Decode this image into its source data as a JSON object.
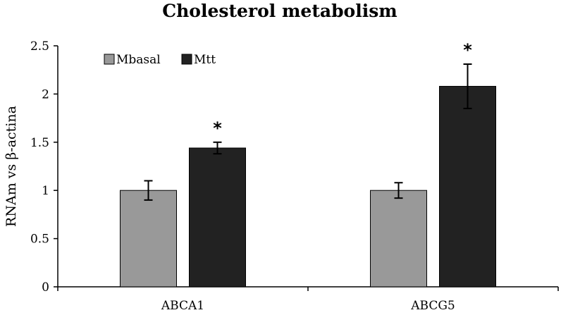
{
  "chart_data": {
    "type": "bar",
    "title": "Cholesterol metabolism",
    "xlabel": "",
    "ylabel": "RNAm vs β-actina",
    "ylim": [
      0,
      2.5
    ],
    "yticks": [
      "0",
      "0.5",
      "1",
      "1.5",
      "2",
      "2.5"
    ],
    "categories": [
      "ABCA1",
      "ABCG5"
    ],
    "series": [
      {
        "name": "Mbasal",
        "color": "#999999",
        "values": [
          1.0,
          1.0
        ],
        "errors": [
          0.1,
          0.08
        ]
      },
      {
        "name": "Mtt",
        "color": "#222222",
        "values": [
          1.44,
          2.08
        ],
        "errors": [
          0.06,
          0.23
        ]
      }
    ],
    "annotations": [
      {
        "category": "ABCA1",
        "series": "Mtt",
        "text": "*"
      },
      {
        "category": "ABCG5",
        "series": "Mtt",
        "text": "*"
      }
    ],
    "legend": "top-left",
    "grid": false
  }
}
